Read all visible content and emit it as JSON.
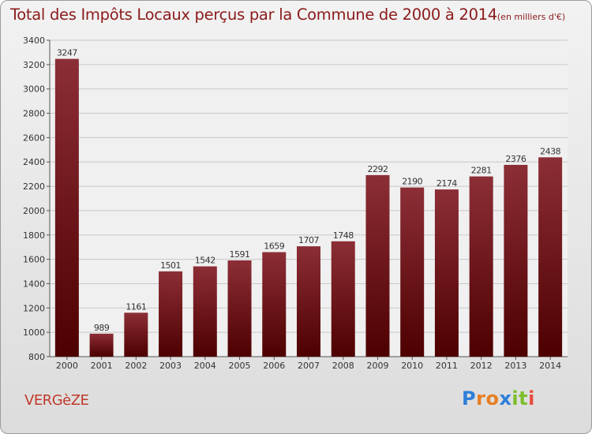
{
  "title": "Total des Impôts Locaux perçus par la Commune de 2000 à 2014",
  "title_unit": "(en milliers d'€)",
  "commune": "VERGèZE",
  "logo": [
    "P",
    "r",
    "o",
    "x",
    "i",
    "t",
    "i"
  ],
  "colors": {
    "bar_top": "#8c2e36",
    "bar_bottom": "#4d0000",
    "title": "#8b1a1a",
    "grid": "#c8c8c8"
  },
  "chart_data": {
    "type": "bar",
    "title": "Total des Impôts Locaux perçus par la Commune de 2000 à 2014",
    "xlabel": "",
    "ylabel": "",
    "categories": [
      "2000",
      "2001",
      "2002",
      "2003",
      "2004",
      "2005",
      "2006",
      "2007",
      "2008",
      "2009",
      "2010",
      "2011",
      "2012",
      "2013",
      "2014"
    ],
    "values": [
      3247,
      989,
      1161,
      1501,
      1542,
      1591,
      1659,
      1707,
      1748,
      2292,
      2190,
      2174,
      2281,
      2376,
      2438
    ],
    "ylim": [
      800,
      3400
    ],
    "yticks": [
      800,
      1000,
      1200,
      1400,
      1600,
      1800,
      2000,
      2200,
      2400,
      2600,
      2800,
      3000,
      3200,
      3400
    ],
    "grid": true,
    "legend": "none"
  }
}
